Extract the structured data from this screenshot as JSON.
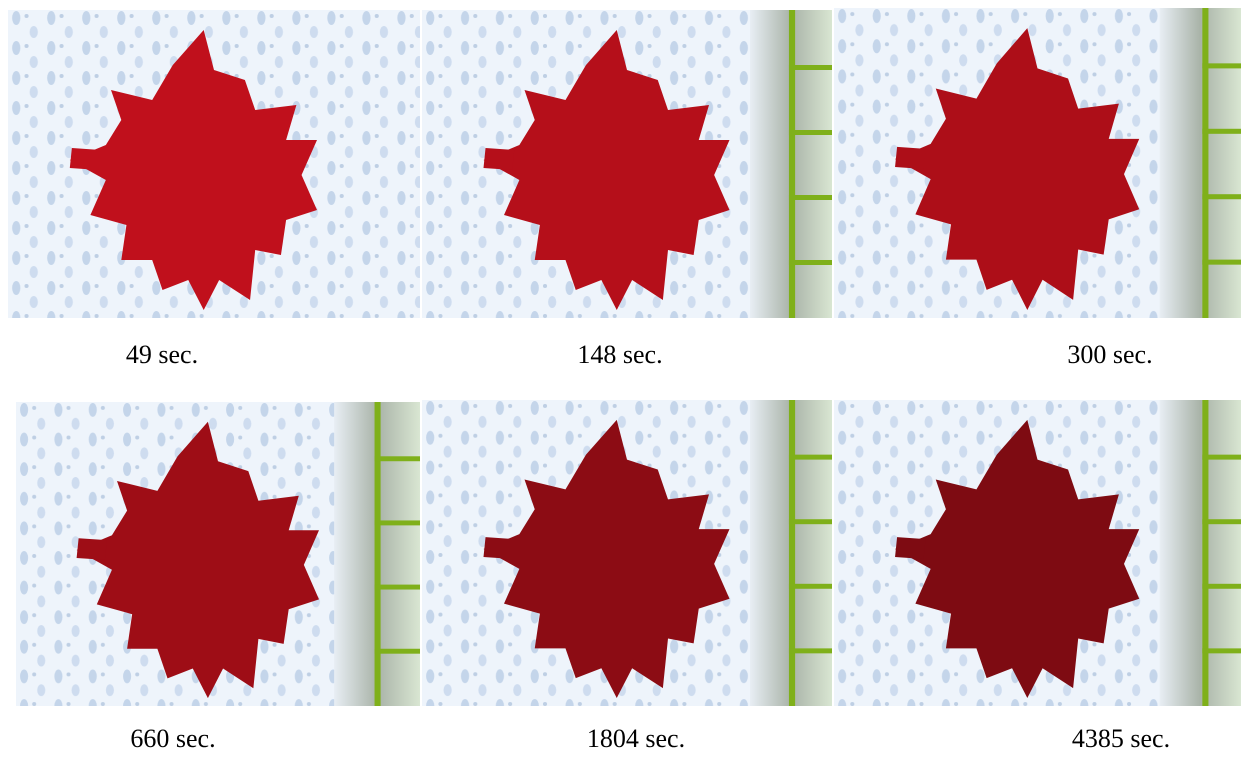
{
  "panels": [
    {
      "caption": "49 sec."
    },
    {
      "caption": "148 sec."
    },
    {
      "caption": "300 sec."
    },
    {
      "caption": "660 sec."
    },
    {
      "caption": "1804 sec."
    },
    {
      "caption": "4385 sec."
    }
  ]
}
